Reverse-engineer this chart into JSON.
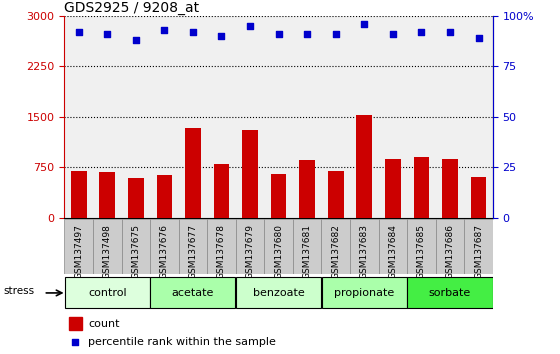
{
  "title": "GDS2925 / 9208_at",
  "samples": [
    "GSM137497",
    "GSM137498",
    "GSM137675",
    "GSM137676",
    "GSM137677",
    "GSM137678",
    "GSM137679",
    "GSM137680",
    "GSM137681",
    "GSM137682",
    "GSM137683",
    "GSM137684",
    "GSM137685",
    "GSM137686",
    "GSM137687"
  ],
  "counts": [
    700,
    680,
    590,
    640,
    1330,
    800,
    1310,
    650,
    860,
    700,
    1530,
    870,
    900,
    880,
    610
  ],
  "percentiles": [
    92,
    91,
    88,
    93,
    92,
    90,
    95,
    91,
    91,
    91,
    96,
    91,
    92,
    92,
    89
  ],
  "groups": [
    {
      "label": "control",
      "start": 0,
      "end": 3,
      "color": "#ddffdd"
    },
    {
      "label": "acetate",
      "start": 3,
      "end": 6,
      "color": "#aaffaa"
    },
    {
      "label": "benzoate",
      "start": 6,
      "end": 9,
      "color": "#ccffcc"
    },
    {
      "label": "propionate",
      "start": 9,
      "end": 12,
      "color": "#aaffaa"
    },
    {
      "label": "sorbate",
      "start": 12,
      "end": 15,
      "color": "#44ee44"
    }
  ],
  "bar_color": "#cc0000",
  "dot_color": "#0000cc",
  "left_ylim": [
    0,
    3000
  ],
  "left_yticks": [
    0,
    750,
    1500,
    2250,
    3000
  ],
  "right_ylim": [
    0,
    100
  ],
  "right_yticks": [
    0,
    25,
    50,
    75,
    100
  ],
  "left_tick_color": "#cc0000",
  "right_tick_color": "#0000cc",
  "plot_bg": "#f0f0f0",
  "stress_label": "stress"
}
